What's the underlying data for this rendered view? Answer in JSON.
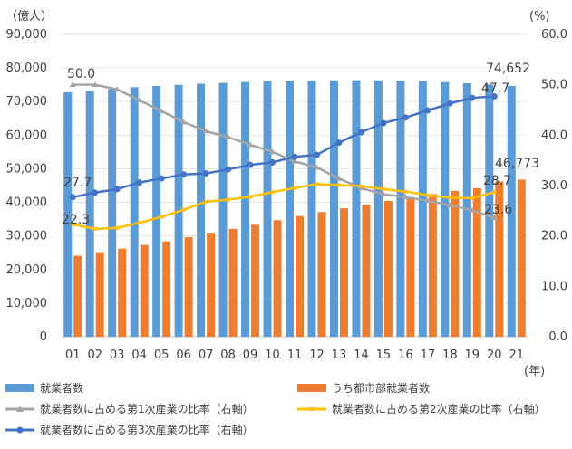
{
  "chart_data": {
    "type": "bar-line-combo",
    "left_axis_unit": "（億人）",
    "right_axis_unit": "(%)",
    "x_unit": "(年)",
    "y_left": {
      "min": 0,
      "max": 90000,
      "step": 10000,
      "tick_labels": [
        "0",
        "10,000",
        "20,000",
        "30,000",
        "40,000",
        "50,000",
        "60,000",
        "70,000",
        "80,000",
        "90,000"
      ]
    },
    "y_right": {
      "min": 0,
      "max": 60,
      "step": 10,
      "tick_labels": [
        "0.0",
        "10.0",
        "20.0",
        "30.0",
        "40.0",
        "50.0",
        "60.0"
      ]
    },
    "categories": [
      "01",
      "02",
      "03",
      "04",
      "05",
      "06",
      "07",
      "08",
      "09",
      "10",
      "11",
      "12",
      "13",
      "14",
      "15",
      "16",
      "17",
      "18",
      "19",
      "20",
      "21"
    ],
    "bar_series": [
      {
        "name": "就業者数",
        "color": "#5b9bd5",
        "values": [
          72797,
          73280,
          73736,
          74264,
          74647,
          74978,
          75321,
          75564,
          75828,
          76105,
          76196,
          76254,
          76301,
          76349,
          76320,
          76245,
          76058,
          75782,
          75447,
          75064,
          74652
        ]
      },
      {
        "name": "うち都市部就業者数",
        "color": "#ed7d31",
        "values": [
          24123,
          25159,
          26230,
          27293,
          28389,
          29630,
          30953,
          32103,
          33322,
          34687,
          35914,
          37102,
          38240,
          39310,
          40410,
          41428,
          42462,
          43419,
          44247,
          46271,
          46773
        ]
      }
    ],
    "line_series": [
      {
        "name": "就業者数に占める第1次産業の比率（右軸）",
        "color": "#a5a5a5",
        "values": [
          50.0,
          50.0,
          49.1,
          46.9,
          44.8,
          42.6,
          40.8,
          39.6,
          38.1,
          36.7,
          34.8,
          33.6,
          31.4,
          29.5,
          28.3,
          27.7,
          27.0,
          26.1,
          25.1,
          23.6,
          null
        ]
      },
      {
        "name": "就業者数に占める第2次産業の比率（右軸）",
        "color": "#ffc000",
        "values": [
          22.3,
          21.4,
          21.6,
          22.6,
          23.8,
          25.2,
          26.8,
          27.2,
          27.8,
          28.7,
          29.5,
          30.3,
          30.1,
          29.9,
          29.3,
          28.8,
          28.1,
          27.6,
          27.5,
          28.7,
          null
        ]
      },
      {
        "name": "就業者数に占める第3次産業の比率（右軸）",
        "color": "#4472c4",
        "values": [
          27.7,
          28.6,
          29.3,
          30.6,
          31.4,
          32.2,
          32.4,
          33.2,
          34.1,
          34.6,
          35.7,
          36.1,
          38.5,
          40.6,
          42.4,
          43.5,
          44.9,
          46.3,
          47.4,
          47.7,
          null
        ]
      }
    ],
    "labels": {
      "bar1_last": "74,652",
      "bar2_last": "46,773",
      "line1_first": "50.0",
      "line1_last": "23.6",
      "line2_first": "22.3",
      "line2_last": "28.7",
      "line3_first": "27.7",
      "line3_last": "47.7"
    }
  }
}
